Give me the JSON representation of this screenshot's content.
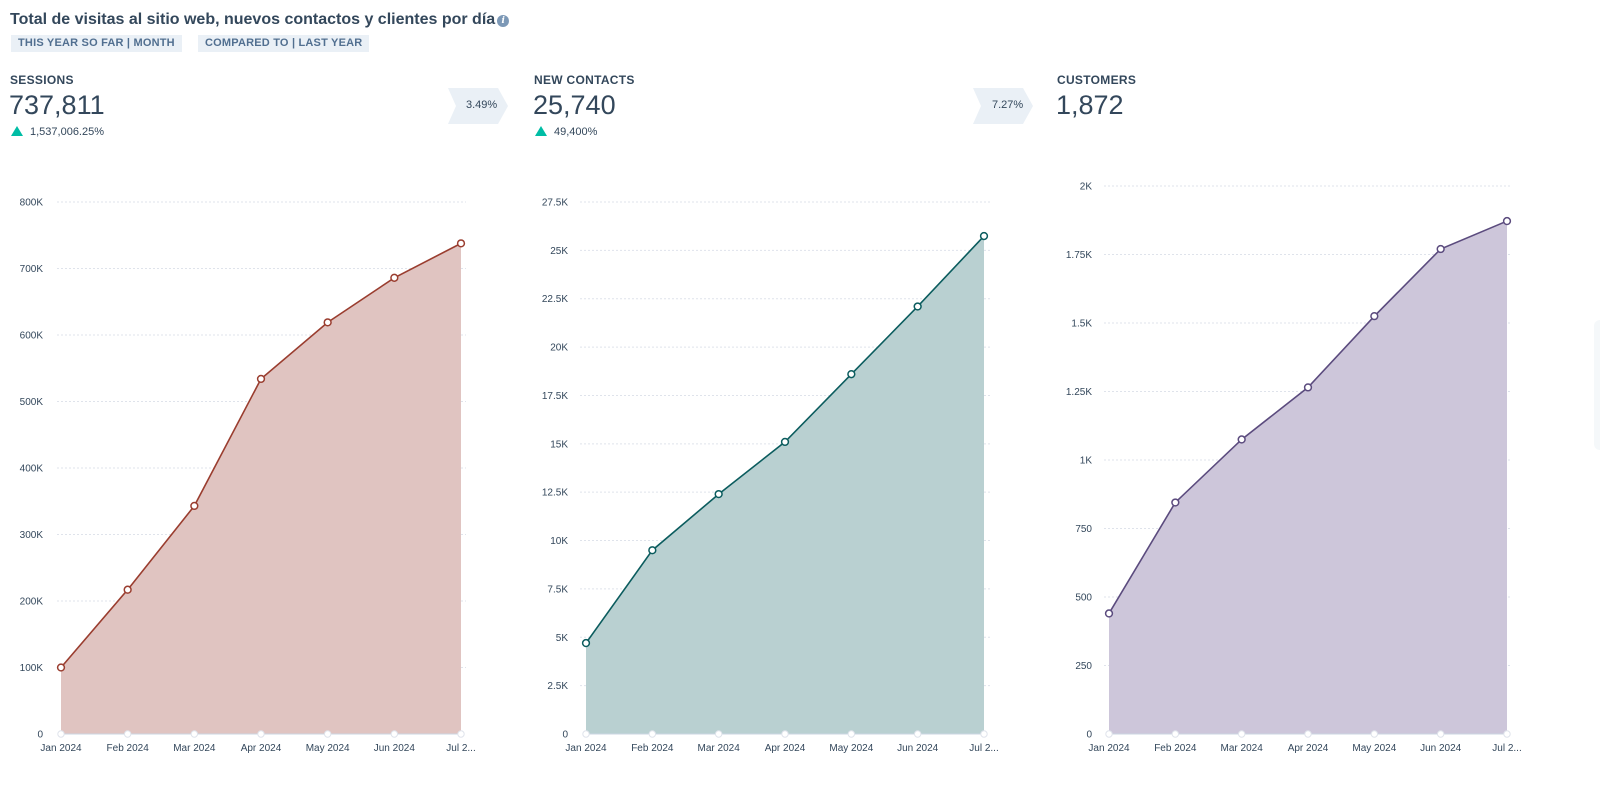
{
  "header": {
    "title": "Total de visitas al sitio web, nuevos contactos y clientes por día",
    "filters": [
      "THIS YEAR SO FAR | MONTH",
      "COMPARED TO | LAST YEAR"
    ]
  },
  "metrics": [
    {
      "label": "SESSIONS",
      "value": "737,811",
      "change": "1,537,006.25%",
      "conversion": "3.49%"
    },
    {
      "label": "NEW CONTACTS",
      "value": "25,740",
      "change": "49,400%",
      "conversion": "7.27%"
    },
    {
      "label": "CUSTOMERS",
      "value": "1,872"
    }
  ],
  "chart_data": [
    {
      "type": "area",
      "categories": [
        "Jan 2024",
        "Feb 2024",
        "Mar 2024",
        "Apr 2024",
        "May 2024",
        "Jun 2024",
        "Jul 2..."
      ],
      "values": [
        100000,
        217000,
        343000,
        534000,
        619000,
        686000,
        737811
      ],
      "ylim": [
        0,
        800000
      ],
      "yticks": [
        0,
        100000,
        200000,
        300000,
        400000,
        500000,
        600000,
        700000,
        800000
      ],
      "ytick_labels": [
        "0",
        "100K",
        "200K",
        "300K",
        "400K",
        "500K",
        "600K",
        "700K",
        "800K"
      ],
      "grid": true,
      "line_color": "#9a3d2f",
      "fill_color": "#e0c4c1"
    },
    {
      "type": "area",
      "categories": [
        "Jan 2024",
        "Feb 2024",
        "Mar 2024",
        "Apr 2024",
        "May 2024",
        "Jun 2024",
        "Jul 2..."
      ],
      "values": [
        4700,
        9500,
        12400,
        15100,
        18600,
        22100,
        25740
      ],
      "ylim": [
        0,
        27500
      ],
      "yticks": [
        0,
        2500,
        5000,
        7500,
        10000,
        12500,
        15000,
        17500,
        20000,
        22500,
        25000,
        27500
      ],
      "ytick_labels": [
        "0",
        "2.5K",
        "5K",
        "7.5K",
        "10K",
        "12.5K",
        "15K",
        "17.5K",
        "20K",
        "22.5K",
        "25K",
        "27.5K"
      ],
      "grid": true,
      "line_color": "#0b5c5e",
      "fill_color": "#b9d0d1"
    },
    {
      "type": "area",
      "categories": [
        "Jan 2024",
        "Feb 2024",
        "Mar 2024",
        "Apr 2024",
        "May 2024",
        "Jun 2024",
        "Jul 2..."
      ],
      "values": [
        440,
        845,
        1075,
        1265,
        1525,
        1770,
        1872
      ],
      "ylim": [
        0,
        2000
      ],
      "yticks": [
        0,
        250,
        500,
        750,
        1000,
        1250,
        1500,
        1750,
        2000
      ],
      "ytick_labels": [
        "0",
        "250",
        "500",
        "750",
        "1K",
        "1.25K",
        "1.5K",
        "1.75K",
        "2K"
      ],
      "grid": true,
      "line_color": "#5b4b7e",
      "fill_color": "#cdc6da"
    }
  ]
}
